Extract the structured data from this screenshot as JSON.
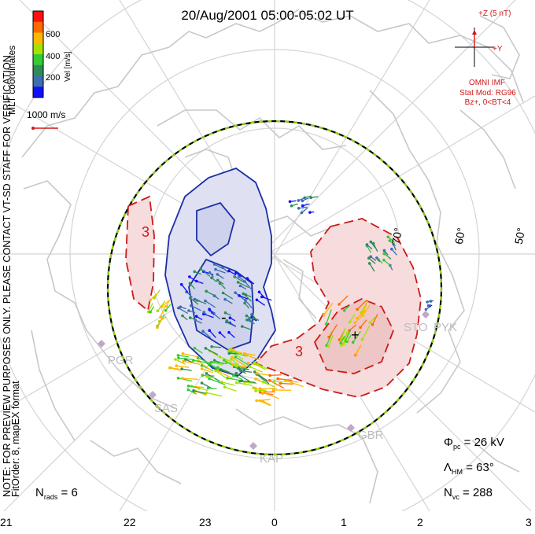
{
  "title": "20/Aug/2001 05:00-05:02 UT",
  "colorbar": {
    "label": "Vel [m/s]",
    "ticks": [
      "600",
      "400",
      "200"
    ],
    "colors": [
      "#ff1010",
      "#ff6a00",
      "#ffb800",
      "#a8e000",
      "#33cc33",
      "#2e8b57",
      "#3a6fb0",
      "#1010ff"
    ]
  },
  "coords_label": "MLT coordinates",
  "ref_vector": "1000 m/s",
  "imf": {
    "z_label": "+Z (5 nT)",
    "y_label": "+Y",
    "source": "OMNI IMF",
    "model": "Stat Mod: RG96",
    "condition": "Bz+, 0<BT<4"
  },
  "note": "NOTE: FOR PREVIEW PURPOSES ONLY. PLEASE CONTACT VT-SD STAFF FOR VERIFICATION.",
  "fit_order": "FitOrder: 8, mapEX format",
  "latitude_labels": [
    "70°",
    "60°",
    "50°"
  ],
  "potential_labels": [
    "3",
    "-",
    "3",
    "+"
  ],
  "stations": [
    "PGR",
    "SAS",
    "KAP",
    "GBR",
    "PYK",
    "STO"
  ],
  "stats": {
    "phi_label": "Φ",
    "phi_sub": "pc",
    "phi_value": "= 26 kV",
    "lambda_label": "Λ",
    "lambda_sub": "HM",
    "lambda_value": "= 63°",
    "nvc_label": "N",
    "nvc_sub": "vc",
    "nvc_value": "= 288",
    "nrads_label": "N",
    "nrads_sub": "rads",
    "nrads_value": "= 6"
  },
  "mlt_ticks": [
    "21",
    "22",
    "23",
    "0",
    "1",
    "2",
    "3"
  ],
  "colors": {
    "negative_cell_fill": "#dfe0f2",
    "negative_contour": "#1a2fa8",
    "positive_cell_fill": "#f6dcdc",
    "positive_contour": "#cc1a1a",
    "coastline": "#c8c8c8",
    "hmb": "#000000",
    "hmb_dash": "#8bd400"
  }
}
